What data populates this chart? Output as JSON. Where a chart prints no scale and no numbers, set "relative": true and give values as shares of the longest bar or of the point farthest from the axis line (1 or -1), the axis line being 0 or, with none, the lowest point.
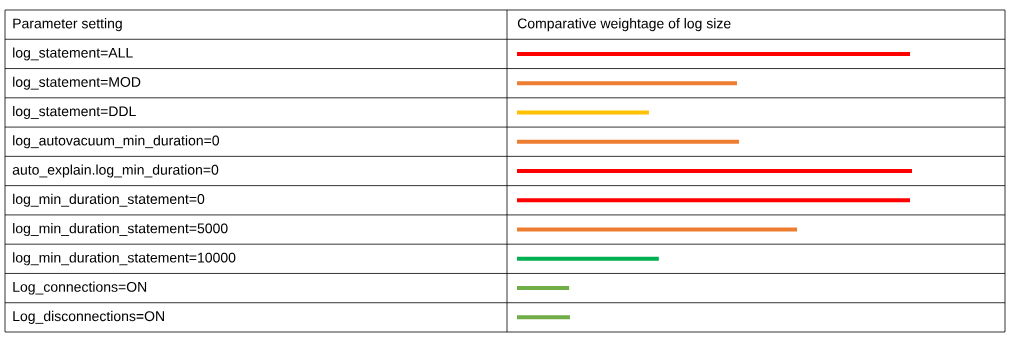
{
  "chart_data": {
    "type": "bar",
    "orientation": "horizontal",
    "relative": true,
    "annotations": [
      "Parameter setting"
    ],
    "title": "Comparative weightage of log size",
    "categories": [
      "log_statement=ALL",
      "log_statement=MOD",
      "log_statement=DDL",
      "log_autovacuum_min_duration=0",
      "auto_explain.log_min_duration=0",
      "log_min_duration_statement=0",
      "log_min_duration_statement=5000",
      "log_min_duration_statement=10000",
      "Log_connections=ON",
      "Log_disconnections=ON"
    ],
    "values": [
      0.995,
      0.557,
      0.334,
      0.562,
      1,
      0.995,
      0.709,
      0.359,
      0.132,
      0.134
    ],
    "colors": [
      "#ff0000",
      "#ed7d31",
      "#ffc000",
      "#ed7d31",
      "#ff0000",
      "#ff0000",
      "#ed7d31",
      "#00b050",
      "#70ad47",
      "#70ad47"
    ]
  }
}
